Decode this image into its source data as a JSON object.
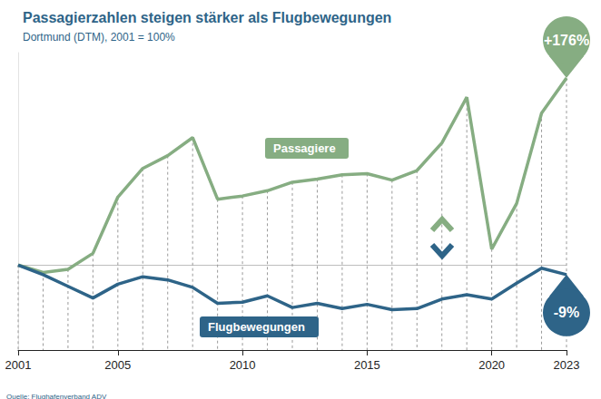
{
  "chart_data": {
    "type": "line",
    "title": "Passagierzahlen steigen stärker als Flugbewegungen",
    "subtitle": "Dortmund (DTM), 2001 = 100%",
    "source": "Quelle: Flughafenverband ADV",
    "x": [
      2001,
      2002,
      2003,
      2004,
      2005,
      2006,
      2007,
      2008,
      2009,
      2010,
      2011,
      2012,
      2013,
      2014,
      2015,
      2016,
      2017,
      2018,
      2019,
      2020,
      2021,
      2022,
      2023
    ],
    "series": [
      {
        "name": "Passagiere",
        "color": "#86ad82",
        "values": [
          100,
          93,
          96,
          111,
          164,
          191,
          203,
          220,
          162,
          165,
          170,
          178,
          181,
          185,
          186,
          180,
          189,
          215,
          258,
          115,
          158,
          243,
          276
        ]
      },
      {
        "name": "Flugbewegungen",
        "color": "#2e6488",
        "values": [
          100,
          91,
          80,
          69,
          82,
          89,
          86,
          79,
          64,
          65,
          71,
          60,
          64,
          59,
          63,
          58,
          59,
          68,
          72,
          68,
          83,
          97,
          91
        ]
      }
    ],
    "annotations": [
      {
        "text": "+176%",
        "series": "Passagiere",
        "x": 2023
      },
      {
        "text": "-9%",
        "series": "Flugbewegungen",
        "x": 2023
      }
    ],
    "xlim": [
      2001,
      2023
    ],
    "xticks": [
      2001,
      2005,
      2010,
      2015,
      2020,
      2023
    ],
    "ylim": [
      20,
      300
    ],
    "yticks": [
      100
    ],
    "grid": true,
    "tick_labels": "x"
  }
}
